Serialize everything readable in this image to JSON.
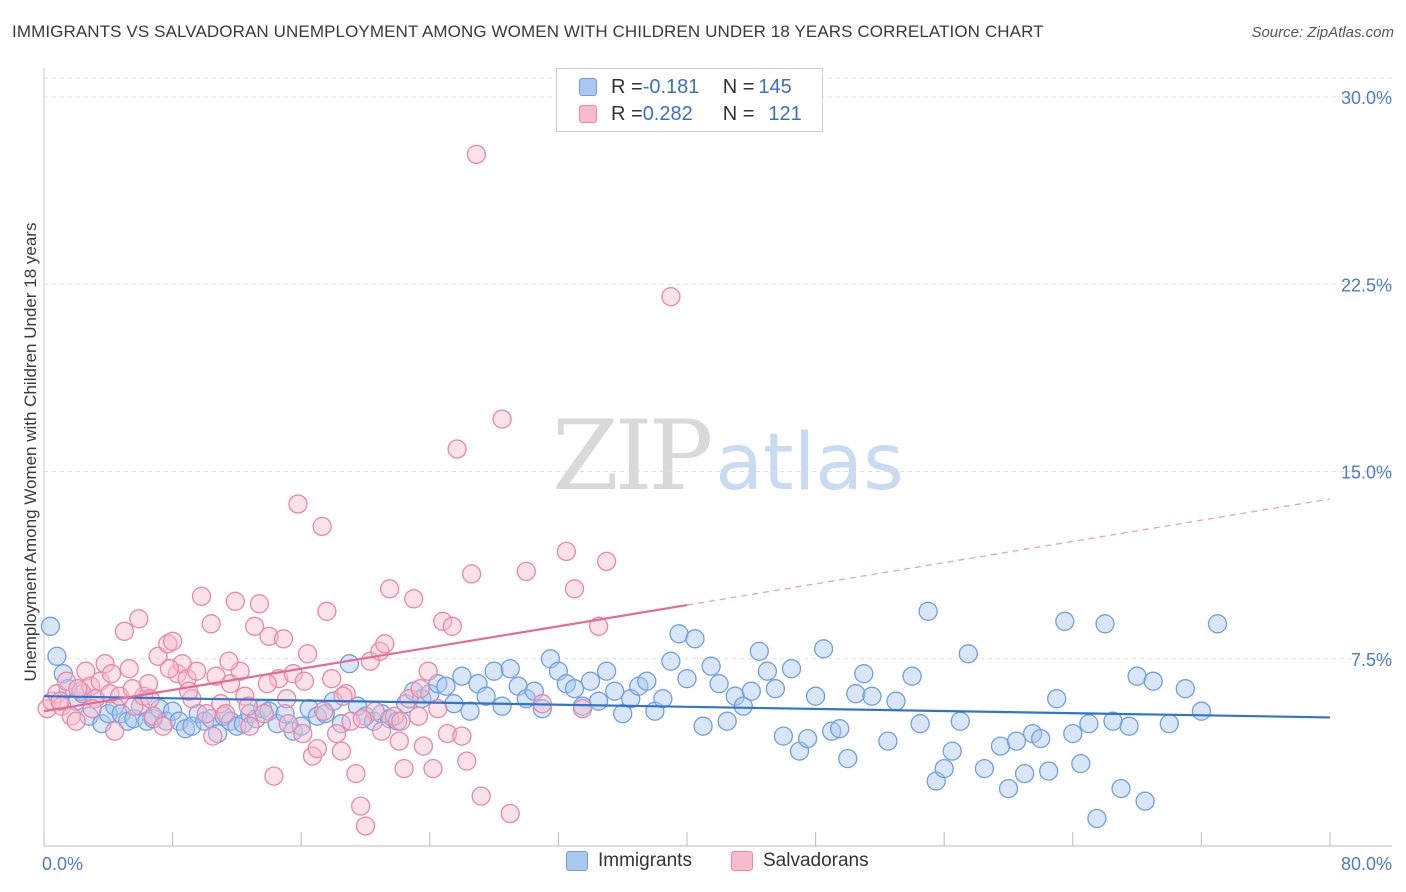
{
  "title": "IMMIGRANTS VS SALVADORAN UNEMPLOYMENT AMONG WOMEN WITH CHILDREN UNDER 18 YEARS CORRELATION CHART",
  "source": "Source: ZipAtlas.com",
  "watermark": {
    "zip": "ZIP",
    "atlas": "atlas"
  },
  "legend": {
    "r_label": "R = ",
    "n_label": "N = ",
    "rows": [
      {
        "r": "-0.181",
        "n": "145",
        "color": "#a8c8f0",
        "border": "#6f9fe0"
      },
      {
        "r": "0.282",
        "n": "121",
        "color": "#f6bccd",
        "border": "#ea86a6"
      }
    ]
  },
  "bottom_legend": [
    {
      "label": "Immigrants",
      "color": "#a8c8f0",
      "border": "#6f9fe0"
    },
    {
      "label": "Salvadorans",
      "color": "#f6bccd",
      "border": "#ea86a6"
    }
  ],
  "chart_data": {
    "type": "scatter",
    "title": "IMMIGRANTS VS SALVADORAN UNEMPLOYMENT AMONG WOMEN WITH CHILDREN UNDER 18 YEARS CORRELATION CHART",
    "xlabel": "",
    "ylabel": "Unemployment Among Women with Children Under 18 years",
    "xlim": [
      0,
      80
    ],
    "ylim": [
      0,
      30
    ],
    "x_tick_labels": [
      "0.0%",
      "80.0%"
    ],
    "y_ticks": [
      7.5,
      15.0,
      22.5,
      30.0
    ],
    "y_tick_labels": [
      "7.5%",
      "15.0%",
      "22.5%",
      "30.0%"
    ],
    "grid": "horizontal dashed",
    "legend_position": "top-center",
    "series": [
      {
        "name": "Immigrants",
        "color": "#6f9fe0",
        "fill": "#a8c8f0",
        "trend": {
          "x": [
            0,
            80
          ],
          "y": [
            6.0,
            5.15
          ],
          "dashed_from": null
        },
        "points": [
          [
            0.4,
            8.8
          ],
          [
            0.8,
            7.6
          ],
          [
            1.2,
            6.9
          ],
          [
            1.5,
            6.3
          ],
          [
            2.0,
            5.8
          ],
          [
            2.4,
            6.1
          ],
          [
            2.8,
            5.2
          ],
          [
            3.2,
            5.9
          ],
          [
            3.6,
            4.9
          ],
          [
            4.0,
            5.3
          ],
          [
            4.4,
            5.6
          ],
          [
            4.8,
            5.3
          ],
          [
            5.2,
            5.0
          ],
          [
            5.6,
            5.1
          ],
          [
            6.0,
            5.6
          ],
          [
            6.4,
            5.0
          ],
          [
            6.8,
            5.1
          ],
          [
            7.2,
            5.5
          ],
          [
            7.6,
            5.0
          ],
          [
            8.0,
            5.4
          ],
          [
            8.4,
            5.0
          ],
          [
            8.8,
            4.7
          ],
          [
            9.2,
            4.8
          ],
          [
            9.6,
            5.3
          ],
          [
            10.0,
            5.0
          ],
          [
            10.4,
            5.1
          ],
          [
            10.8,
            4.5
          ],
          [
            11.2,
            5.2
          ],
          [
            11.6,
            5.0
          ],
          [
            12.0,
            4.8
          ],
          [
            12.4,
            4.9
          ],
          [
            12.8,
            5.3
          ],
          [
            13.2,
            5.1
          ],
          [
            13.6,
            5.5
          ],
          [
            14.0,
            5.4
          ],
          [
            14.5,
            4.9
          ],
          [
            15.0,
            5.3
          ],
          [
            15.5,
            4.6
          ],
          [
            16.0,
            4.8
          ],
          [
            16.5,
            5.5
          ],
          [
            17.0,
            5.2
          ],
          [
            17.5,
            5.3
          ],
          [
            18.0,
            5.8
          ],
          [
            18.5,
            4.9
          ],
          [
            19.0,
            7.3
          ],
          [
            19.5,
            5.6
          ],
          [
            20.0,
            5.2
          ],
          [
            20.5,
            5.0
          ],
          [
            21.0,
            5.3
          ],
          [
            21.5,
            5.1
          ],
          [
            22.0,
            5.0
          ],
          [
            22.5,
            5.7
          ],
          [
            23.0,
            6.2
          ],
          [
            23.5,
            5.9
          ],
          [
            24.0,
            6.1
          ],
          [
            24.5,
            6.5
          ],
          [
            25.0,
            6.4
          ],
          [
            25.5,
            5.7
          ],
          [
            26.0,
            6.8
          ],
          [
            26.5,
            5.4
          ],
          [
            27.0,
            6.5
          ],
          [
            27.5,
            6.0
          ],
          [
            28.0,
            7.0
          ],
          [
            28.5,
            5.6
          ],
          [
            29.0,
            7.1
          ],
          [
            29.5,
            6.4
          ],
          [
            30.0,
            5.9
          ],
          [
            30.5,
            6.2
          ],
          [
            31.0,
            5.5
          ],
          [
            31.5,
            7.5
          ],
          [
            32.0,
            7.0
          ],
          [
            32.5,
            6.5
          ],
          [
            33.0,
            6.3
          ],
          [
            33.5,
            5.6
          ],
          [
            34.0,
            6.6
          ],
          [
            34.5,
            5.8
          ],
          [
            35.0,
            7.0
          ],
          [
            35.5,
            6.2
          ],
          [
            36.0,
            5.3
          ],
          [
            36.5,
            5.9
          ],
          [
            37.0,
            6.4
          ],
          [
            37.5,
            6.6
          ],
          [
            38.0,
            5.4
          ],
          [
            38.5,
            5.9
          ],
          [
            39.0,
            7.4
          ],
          [
            39.5,
            8.5
          ],
          [
            40.0,
            6.7
          ],
          [
            40.5,
            8.3
          ],
          [
            41.0,
            4.8
          ],
          [
            41.5,
            7.2
          ],
          [
            42.0,
            6.5
          ],
          [
            42.5,
            5.0
          ],
          [
            43.0,
            6.0
          ],
          [
            43.5,
            5.6
          ],
          [
            44.0,
            6.2
          ],
          [
            44.5,
            7.8
          ],
          [
            45.0,
            7.0
          ],
          [
            45.5,
            6.3
          ],
          [
            46.0,
            4.4
          ],
          [
            46.5,
            7.1
          ],
          [
            47.0,
            3.8
          ],
          [
            47.5,
            4.3
          ],
          [
            48.0,
            6.0
          ],
          [
            48.5,
            7.9
          ],
          [
            49.0,
            4.6
          ],
          [
            49.5,
            4.7
          ],
          [
            50.0,
            3.5
          ],
          [
            50.5,
            6.1
          ],
          [
            51.0,
            6.9
          ],
          [
            51.5,
            6.0
          ],
          [
            52.5,
            4.2
          ],
          [
            53.0,
            5.8
          ],
          [
            54.0,
            6.8
          ],
          [
            54.5,
            4.9
          ],
          [
            55.0,
            9.4
          ],
          [
            55.5,
            2.6
          ],
          [
            56.0,
            3.1
          ],
          [
            56.5,
            3.8
          ],
          [
            57.0,
            5.0
          ],
          [
            57.5,
            7.7
          ],
          [
            58.5,
            3.1
          ],
          [
            59.5,
            4.0
          ],
          [
            60.0,
            2.3
          ],
          [
            60.5,
            4.2
          ],
          [
            61.0,
            2.9
          ],
          [
            61.5,
            4.5
          ],
          [
            62.0,
            4.3
          ],
          [
            62.5,
            3.0
          ],
          [
            63.0,
            5.9
          ],
          [
            63.5,
            9.0
          ],
          [
            64.0,
            4.5
          ],
          [
            64.5,
            3.3
          ],
          [
            65.0,
            4.9
          ],
          [
            65.5,
            1.1
          ],
          [
            66.0,
            8.9
          ],
          [
            66.5,
            5.0
          ],
          [
            67.0,
            2.3
          ],
          [
            67.5,
            4.8
          ],
          [
            68.0,
            6.8
          ],
          [
            68.5,
            1.8
          ],
          [
            69.0,
            6.6
          ],
          [
            70.0,
            4.9
          ],
          [
            71.0,
            6.3
          ],
          [
            72.0,
            5.4
          ],
          [
            73.0,
            8.9
          ]
        ]
      },
      {
        "name": "Salvadorans",
        "color": "#ea86a6",
        "fill": "#f6bccd",
        "trend": {
          "x": [
            0,
            80
          ],
          "y": [
            5.4,
            13.9
          ],
          "dashed_from": 40
        },
        "points": [
          [
            0.2,
            5.5
          ],
          [
            0.5,
            5.8
          ],
          [
            0.8,
            6.1
          ],
          [
            1.1,
            5.6
          ],
          [
            1.4,
            6.6
          ],
          [
            1.7,
            5.2
          ],
          [
            2.0,
            5.0
          ],
          [
            2.3,
            6.2
          ],
          [
            2.6,
            7.0
          ],
          [
            2.9,
            6.4
          ],
          [
            3.2,
            5.9
          ],
          [
            3.5,
            6.6
          ],
          [
            3.8,
            7.3
          ],
          [
            4.1,
            6.1
          ],
          [
            4.4,
            4.6
          ],
          [
            4.7,
            6.0
          ],
          [
            5.0,
            8.6
          ],
          [
            5.3,
            7.1
          ],
          [
            5.6,
            5.6
          ],
          [
            5.9,
            9.1
          ],
          [
            6.2,
            6.0
          ],
          [
            6.5,
            6.5
          ],
          [
            6.8,
            5.2
          ],
          [
            7.1,
            7.6
          ],
          [
            7.4,
            4.8
          ],
          [
            7.7,
            8.1
          ],
          [
            8.0,
            8.2
          ],
          [
            8.3,
            6.9
          ],
          [
            8.6,
            7.3
          ],
          [
            8.9,
            6.7
          ],
          [
            9.2,
            5.9
          ],
          [
            9.5,
            7.0
          ],
          [
            9.8,
            10.0
          ],
          [
            10.1,
            5.3
          ],
          [
            10.4,
            8.9
          ],
          [
            10.7,
            6.8
          ],
          [
            11.0,
            5.7
          ],
          [
            11.3,
            5.3
          ],
          [
            11.6,
            6.5
          ],
          [
            11.9,
            9.8
          ],
          [
            12.2,
            7.0
          ],
          [
            12.5,
            6.0
          ],
          [
            12.8,
            4.8
          ],
          [
            13.1,
            8.8
          ],
          [
            13.4,
            9.7
          ],
          [
            13.7,
            5.3
          ],
          [
            14.0,
            8.4
          ],
          [
            14.3,
            2.8
          ],
          [
            14.6,
            6.7
          ],
          [
            14.9,
            8.3
          ],
          [
            15.2,
            4.9
          ],
          [
            15.5,
            6.9
          ],
          [
            15.8,
            13.7
          ],
          [
            16.1,
            4.5
          ],
          [
            16.4,
            7.7
          ],
          [
            16.7,
            3.6
          ],
          [
            17.0,
            3.9
          ],
          [
            17.3,
            12.8
          ],
          [
            17.6,
            9.4
          ],
          [
            17.9,
            6.7
          ],
          [
            18.2,
            4.5
          ],
          [
            18.5,
            3.8
          ],
          [
            18.8,
            6.1
          ],
          [
            19.1,
            5.0
          ],
          [
            19.4,
            2.9
          ],
          [
            19.7,
            1.6
          ],
          [
            20.0,
            0.8
          ],
          [
            20.3,
            7.4
          ],
          [
            20.6,
            5.4
          ],
          [
            20.9,
            7.8
          ],
          [
            21.2,
            8.1
          ],
          [
            21.5,
            10.3
          ],
          [
            21.8,
            5.2
          ],
          [
            22.1,
            4.2
          ],
          [
            22.4,
            3.1
          ],
          [
            22.7,
            5.9
          ],
          [
            23.0,
            9.9
          ],
          [
            23.3,
            5.2
          ],
          [
            23.6,
            4.0
          ],
          [
            23.9,
            7.0
          ],
          [
            24.2,
            3.1
          ],
          [
            24.5,
            5.5
          ],
          [
            24.8,
            9.0
          ],
          [
            25.1,
            4.5
          ],
          [
            25.4,
            8.8
          ],
          [
            25.7,
            15.9
          ],
          [
            26.0,
            4.4
          ],
          [
            26.3,
            3.4
          ],
          [
            26.6,
            10.9
          ],
          [
            26.9,
            27.7
          ],
          [
            27.2,
            2.0
          ],
          [
            28.5,
            17.1
          ],
          [
            29.0,
            1.3
          ],
          [
            30.0,
            11.0
          ],
          [
            31.0,
            5.7
          ],
          [
            32.5,
            11.8
          ],
          [
            33.0,
            10.3
          ],
          [
            33.5,
            5.5
          ],
          [
            34.5,
            8.8
          ],
          [
            35.0,
            11.4
          ],
          [
            39.0,
            22.0
          ],
          [
            1.0,
            5.8
          ],
          [
            2.1,
            6.3
          ],
          [
            3.0,
            5.5
          ],
          [
            4.2,
            6.9
          ],
          [
            5.5,
            6.3
          ],
          [
            6.6,
            5.9
          ],
          [
            7.8,
            7.1
          ],
          [
            9.0,
            6.2
          ],
          [
            10.5,
            4.4
          ],
          [
            11.5,
            7.4
          ],
          [
            12.7,
            5.6
          ],
          [
            13.9,
            6.5
          ],
          [
            15.1,
            5.9
          ],
          [
            16.2,
            6.6
          ],
          [
            17.4,
            5.4
          ],
          [
            18.6,
            6.0
          ],
          [
            19.8,
            5.1
          ],
          [
            21.0,
            4.6
          ],
          [
            22.2,
            5.0
          ],
          [
            23.4,
            6.3
          ]
        ]
      }
    ]
  }
}
